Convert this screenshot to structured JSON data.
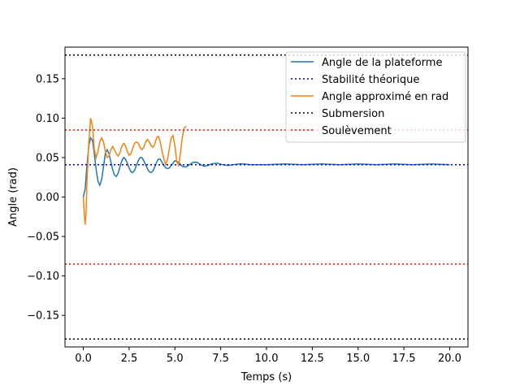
{
  "chart_data": {
    "type": "line",
    "title": "",
    "xlabel": "Temps (s)",
    "ylabel": "Angle (rad)",
    "xlim": [
      -1.0,
      21.0
    ],
    "ylim": [
      -0.19,
      0.19
    ],
    "grid": false,
    "legend_position": "top-right",
    "x_ticks": [
      0.0,
      2.5,
      5.0,
      7.5,
      10.0,
      12.5,
      15.0,
      17.5,
      20.0
    ],
    "x_tick_labels": [
      "0.0",
      "2.5",
      "5.0",
      "7.5",
      "10.0",
      "12.5",
      "15.0",
      "17.5",
      "20.0"
    ],
    "y_ticks": [
      -0.15,
      -0.1,
      -0.05,
      0.0,
      0.05,
      0.1,
      0.15
    ],
    "y_tick_labels": [
      "−0.15",
      "−0.10",
      "−0.05",
      "0.00",
      "0.05",
      "0.10",
      "0.15"
    ],
    "series": [
      {
        "name": "Angle de la plateforme",
        "color": "#1f77b4",
        "style": "solid",
        "x": [
          0.0,
          0.1,
          0.2,
          0.3,
          0.4,
          0.5,
          0.6,
          0.7,
          0.8,
          0.9,
          1.0,
          1.1,
          1.2,
          1.3,
          1.4,
          1.5,
          1.6,
          1.7,
          1.8,
          1.9,
          2.0,
          2.1,
          2.2,
          2.3,
          2.4,
          2.5,
          2.6,
          2.7,
          2.8,
          2.9,
          3.0,
          3.1,
          3.2,
          3.3,
          3.4,
          3.5,
          3.6,
          3.7,
          3.8,
          3.9,
          4.0,
          4.1,
          4.2,
          4.3,
          4.4,
          4.5,
          4.6,
          4.7,
          4.8,
          4.9,
          5.0,
          5.2,
          5.4,
          5.6,
          5.8,
          6.0,
          6.2,
          6.4,
          6.6,
          6.8,
          7.0,
          7.3,
          7.6,
          7.9,
          8.2,
          8.5,
          8.8,
          9.1,
          9.5,
          10.0,
          11.0,
          12.0,
          13.0,
          14.0,
          15.0,
          16.0,
          17.0,
          18.0,
          19.0,
          20.0
        ],
        "y": [
          0.0,
          0.01,
          0.04,
          0.065,
          0.075,
          0.072,
          0.055,
          0.035,
          0.02,
          0.015,
          0.022,
          0.038,
          0.055,
          0.06,
          0.055,
          0.045,
          0.035,
          0.028,
          0.026,
          0.03,
          0.038,
          0.046,
          0.05,
          0.048,
          0.043,
          0.037,
          0.032,
          0.031,
          0.034,
          0.04,
          0.046,
          0.05,
          0.05,
          0.046,
          0.041,
          0.036,
          0.032,
          0.031,
          0.033,
          0.038,
          0.044,
          0.048,
          0.048,
          0.044,
          0.04,
          0.037,
          0.036,
          0.037,
          0.04,
          0.043,
          0.046,
          0.044,
          0.039,
          0.038,
          0.041,
          0.044,
          0.044,
          0.041,
          0.039,
          0.04,
          0.042,
          0.043,
          0.041,
          0.04,
          0.041,
          0.042,
          0.042,
          0.041,
          0.041,
          0.041,
          0.042,
          0.041,
          0.042,
          0.041,
          0.042,
          0.041,
          0.042,
          0.041,
          0.042,
          0.041
        ]
      },
      {
        "name": "Stabilité théorique",
        "color": "#0000cc",
        "style": "dotted",
        "x": [
          -1.0,
          21.0
        ],
        "y": [
          0.041,
          0.041
        ]
      },
      {
        "name": "Angle approximé en rad",
        "color": "#ff7f0e",
        "style": "solid",
        "x": [
          0.0,
          0.05,
          0.1,
          0.15,
          0.2,
          0.3,
          0.4,
          0.5,
          0.6,
          0.7,
          0.8,
          0.9,
          1.0,
          1.1,
          1.2,
          1.3,
          1.4,
          1.5,
          1.6,
          1.7,
          1.8,
          1.9,
          2.0,
          2.1,
          2.2,
          2.3,
          2.4,
          2.5,
          2.6,
          2.7,
          2.8,
          2.9,
          3.0,
          3.1,
          3.2,
          3.3,
          3.4,
          3.5,
          3.6,
          3.7,
          3.8,
          3.9,
          4.0,
          4.1,
          4.2,
          4.3,
          4.4,
          4.5,
          4.6,
          4.7,
          4.8,
          4.9,
          5.0,
          5.1,
          5.2,
          5.3,
          5.4,
          5.5,
          5.6
        ],
        "y": [
          0.0,
          -0.02,
          -0.035,
          -0.02,
          0.02,
          0.07,
          0.1,
          0.09,
          0.06,
          0.05,
          0.058,
          0.07,
          0.075,
          0.07,
          0.058,
          0.05,
          0.052,
          0.06,
          0.064,
          0.06,
          0.055,
          0.052,
          0.056,
          0.064,
          0.068,
          0.065,
          0.058,
          0.053,
          0.055,
          0.062,
          0.068,
          0.07,
          0.068,
          0.063,
          0.06,
          0.063,
          0.07,
          0.073,
          0.07,
          0.065,
          0.063,
          0.067,
          0.075,
          0.077,
          0.07,
          0.058,
          0.048,
          0.041,
          0.048,
          0.062,
          0.075,
          0.078,
          0.065,
          0.045,
          0.04,
          0.055,
          0.075,
          0.087,
          0.09
        ]
      },
      {
        "name": "Submersion",
        "color": "#000000",
        "style": "dotted",
        "x": [
          -1.0,
          21.0
        ],
        "y": [
          0.18,
          0.18
        ]
      },
      {
        "name": "Soulèvement",
        "color": "#ff0000",
        "style": "dotted",
        "x": [
          -1.0,
          21.0
        ],
        "y": [
          0.085,
          0.085
        ]
      }
    ],
    "extra_lines": [
      {
        "color": "#ff0000",
        "style": "dotted",
        "y": -0.085
      },
      {
        "color": "#000000",
        "style": "dotted",
        "y": -0.18
      }
    ]
  }
}
